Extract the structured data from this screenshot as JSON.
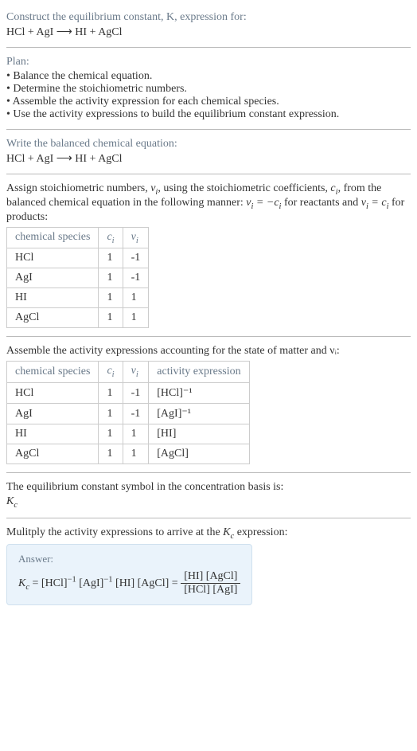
{
  "header": {
    "title": "Construct the equilibrium constant, K, expression for:",
    "equation": "HCl + AgI ⟶ HI + AgCl"
  },
  "plan": {
    "title": "Plan:",
    "items": [
      "Balance the chemical equation.",
      "Determine the stoichiometric numbers.",
      "Assemble the activity expression for each chemical species.",
      "Use the activity expressions to build the equilibrium constant expression."
    ]
  },
  "balanced": {
    "title": "Write the balanced chemical equation:",
    "equation": "HCl + AgI ⟶ HI + AgCl"
  },
  "stoich": {
    "intro_before_nu": "Assign stoichiometric numbers, ",
    "intro_mid1": ", using the stoichiometric coefficients, ",
    "intro_mid2": ", from the balanced chemical equation in the following manner: ",
    "intro_mid3": " for reactants and ",
    "intro_end": " for products:",
    "col1": "chemical species",
    "col2": "cᵢ",
    "col3": "νᵢ",
    "rows": [
      {
        "species": "HCl",
        "c": "1",
        "nu": "-1"
      },
      {
        "species": "AgI",
        "c": "1",
        "nu": "-1"
      },
      {
        "species": "HI",
        "c": "1",
        "nu": "1"
      },
      {
        "species": "AgCl",
        "c": "1",
        "nu": "1"
      }
    ]
  },
  "activity": {
    "title": "Assemble the activity expressions accounting for the state of matter and νᵢ:",
    "col1": "chemical species",
    "col2": "cᵢ",
    "col3": "νᵢ",
    "col4": "activity expression",
    "rows": [
      {
        "species": "HCl",
        "c": "1",
        "nu": "-1",
        "expr": "[HCl]⁻¹"
      },
      {
        "species": "AgI",
        "c": "1",
        "nu": "-1",
        "expr": "[AgI]⁻¹"
      },
      {
        "species": "HI",
        "c": "1",
        "nu": "1",
        "expr": "[HI]"
      },
      {
        "species": "AgCl",
        "c": "1",
        "nu": "1",
        "expr": "[AgCl]"
      }
    ]
  },
  "kc_symbol": {
    "title": "The equilibrium constant symbol in the concentration basis is:",
    "value": "K𝒸"
  },
  "multiply": {
    "title": "Mulitply the activity expressions to arrive at the K𝒸 expression:"
  },
  "answer": {
    "label": "Answer:",
    "lhs": "K𝒸 = [HCl]⁻¹ [AgI]⁻¹ [HI] [AgCl] = ",
    "num": "[HI] [AgCl]",
    "den": "[HCl] [AgI]"
  },
  "style": {
    "background": "#ffffff",
    "text_color": "#333333",
    "muted_color": "#6a7a8a",
    "border_color": "#cccccc",
    "divider_color": "#bbbbbb",
    "answer_bg": "#eaf3fb",
    "answer_border": "#cfe0ee",
    "font_family": "Georgia, serif",
    "base_font_size_pt": 11
  }
}
